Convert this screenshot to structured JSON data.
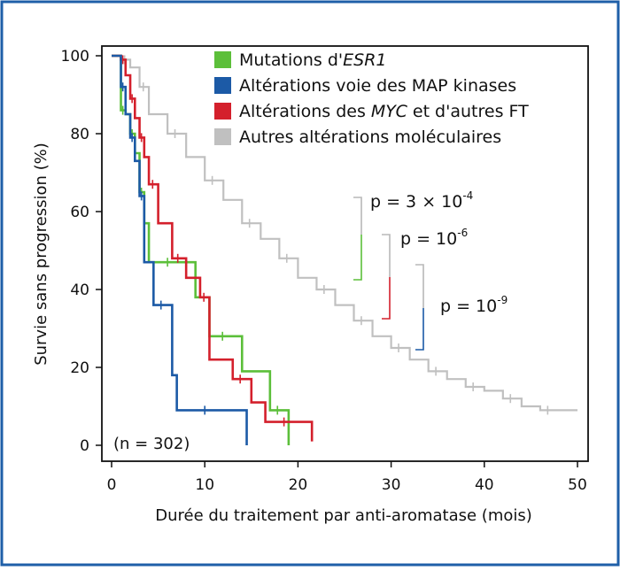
{
  "chart_data": {
    "type": "line",
    "subtype": "kaplan-meier",
    "xlabel": "Durée du traitement par anti-aromatase (mois)",
    "ylabel": "Survie sans progression (%)",
    "xlim": [
      0,
      50
    ],
    "ylim": [
      0,
      100
    ],
    "xticks": [
      0,
      10,
      20,
      30,
      40,
      50
    ],
    "yticks": [
      0,
      20,
      40,
      60,
      80,
      100
    ],
    "grid": false,
    "legend_position": "top-right",
    "annotation": "(n = 302)",
    "series": [
      {
        "name": "Mutations d'ESR1",
        "legend": {
          "before": "Mutations d'",
          "italic": "ESR1",
          "after": ""
        },
        "color": "#5cbf3a",
        "x": [
          0,
          1,
          1.5,
          2,
          2.5,
          3,
          3.5,
          4,
          9,
          10.5,
          14,
          17,
          19,
          19
        ],
        "y": [
          100,
          86,
          85,
          80,
          75,
          65,
          57,
          47,
          38,
          28,
          19,
          9,
          5,
          0
        ]
      },
      {
        "name": "Altérations voie des MAP kinases",
        "legend": {
          "before": "Altérations voie des MAP kinases",
          "italic": "",
          "after": ""
        },
        "color": "#1c5aa6",
        "x": [
          0,
          1,
          1.5,
          2,
          2.5,
          3,
          3.5,
          4.5,
          6.5,
          7,
          14.5,
          14.5
        ],
        "y": [
          100,
          92,
          85,
          79,
          73,
          64,
          47,
          36,
          18,
          9,
          9,
          0
        ]
      },
      {
        "name": "Altérations des MYC et d'autres FT",
        "legend": {
          "before": "Altérations des ",
          "italic": "MYC",
          "after": " et d'autres FT"
        },
        "color": "#d4202c",
        "x": [
          0,
          1,
          1.5,
          2,
          2.5,
          3,
          3.5,
          4,
          5,
          6.5,
          8,
          9.5,
          10.5,
          13,
          15,
          16.5,
          21.5,
          21.5
        ],
        "y": [
          100,
          99,
          95,
          89,
          84,
          79,
          74,
          67,
          57,
          48,
          43,
          38,
          22,
          17,
          11,
          6,
          6,
          1
        ]
      },
      {
        "name": "Autres altérations moléculaires",
        "legend": {
          "before": "Autres altérations moléculaires",
          "italic": "",
          "after": ""
        },
        "color": "#c0c0c0",
        "x": [
          0,
          1,
          2,
          3,
          4,
          6,
          8,
          10,
          12,
          14,
          16,
          18,
          20,
          22,
          24,
          26,
          28,
          30,
          32,
          34,
          36,
          38,
          40,
          42,
          44,
          46,
          48,
          50
        ],
        "y": [
          100,
          99,
          97,
          92,
          85,
          80,
          74,
          68,
          63,
          57,
          53,
          48,
          43,
          40,
          36,
          32,
          28,
          25,
          22,
          19,
          17,
          15,
          14,
          12,
          10,
          9,
          9,
          9
        ]
      }
    ],
    "p_values": [
      {
        "label": "p = 3 × 10",
        "sup": "-4",
        "color": "#5cbf3a"
      },
      {
        "label": "p = 10",
        "sup": "-6",
        "color": "#d4202c"
      },
      {
        "label": "p = 10",
        "sup": "-9",
        "color": "#1c5aa6"
      }
    ]
  },
  "frame": {
    "border_color": "#1f5fa8"
  }
}
